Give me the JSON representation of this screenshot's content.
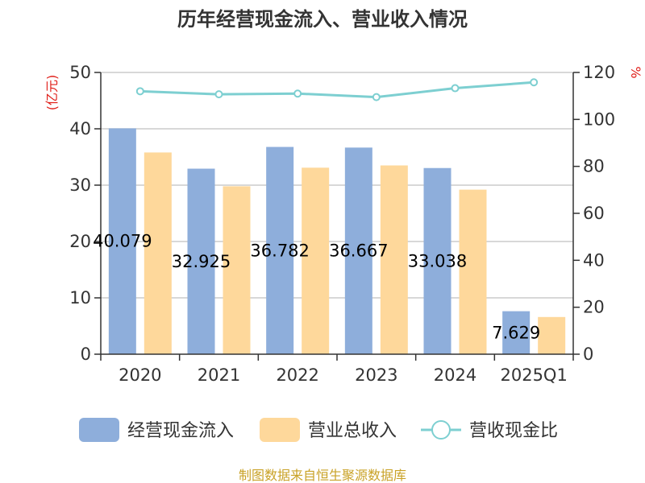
{
  "chart_data": {
    "type": "bar",
    "title": "历年经营现金流入、营业收入情况",
    "categories": [
      "2020",
      "2021",
      "2022",
      "2023",
      "2024",
      "2025Q1"
    ],
    "series": [
      {
        "name": "经营现金流入",
        "kind": "bar",
        "axis": "left",
        "color": "#8eaedb",
        "values": [
          40.079,
          32.925,
          36.782,
          36.667,
          33.038,
          7.629
        ],
        "labels": [
          "40.079",
          "32.925",
          "36.782",
          "36.667",
          "33.038",
          "7.629"
        ]
      },
      {
        "name": "营业总收入",
        "kind": "bar",
        "axis": "left",
        "color": "#fed89b",
        "values": [
          35.8,
          29.8,
          33.1,
          33.5,
          29.2,
          6.6
        ]
      },
      {
        "name": "营收现金比",
        "kind": "line",
        "axis": "right",
        "color": "#7dcfd1",
        "values": [
          112,
          110.7,
          111,
          109.5,
          113.3,
          115.8
        ]
      }
    ],
    "left_axis": {
      "label": "(亿元)",
      "ylim": [
        0,
        50
      ],
      "ticks": [
        0,
        10,
        20,
        30,
        40,
        50
      ]
    },
    "right_axis": {
      "label": "%",
      "ylim": [
        0,
        120
      ],
      "ticks": [
        0,
        20,
        40,
        60,
        80,
        100,
        120
      ]
    },
    "grid": true,
    "legend_position": "bottom",
    "colors": {
      "axis_label": "#e0201a",
      "source": "#c9a227",
      "text": "#333333"
    }
  },
  "source_text": "制图数据来自恒生聚源数据库"
}
